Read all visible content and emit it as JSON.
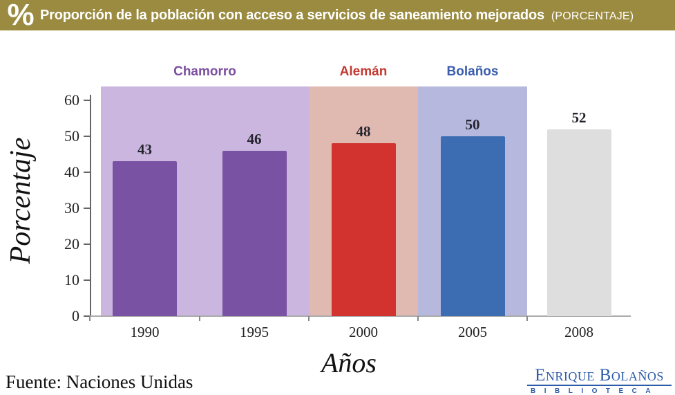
{
  "header": {
    "icon": "%",
    "title": "Proporción de la población con acceso a servicios de saneamiento mejorados",
    "subtitle": "(PORCENTAJE)"
  },
  "chart_data": {
    "type": "bar",
    "title": "Proporción de la población con acceso a servicios de saneamiento mejorados (porcentaje)",
    "xlabel": "Años",
    "ylabel": "Porcentaje",
    "categories": [
      "1990",
      "1995",
      "2000",
      "2005",
      "2008"
    ],
    "values": [
      43,
      46,
      48,
      50,
      52
    ],
    "bar_colors": [
      "#7a52a4",
      "#7a52a4",
      "#d2332e",
      "#3c6cb1",
      "#dedede"
    ],
    "ylim": [
      0,
      60
    ],
    "yticks": [
      0,
      10,
      20,
      30,
      40,
      50,
      60
    ],
    "grid": false,
    "legend_position": "none",
    "period_bands": [
      {
        "label": "Chamorro",
        "start_category": "1990",
        "end_category": "1995",
        "band_color": "#cab6de",
        "label_color": "#7b4fa0"
      },
      {
        "label": "Alemán",
        "start_category": "2000",
        "end_category": "2000",
        "band_color": "#e0b9b1",
        "label_color": "#c23a31"
      },
      {
        "label": "Bolaños",
        "start_category": "2005",
        "end_category": "2005",
        "band_color": "#b6b8de",
        "label_color": "#3a5dae"
      }
    ]
  },
  "footer": {
    "source": "Fuente: Naciones Unidas",
    "logo_title": "Enrique Bolaños",
    "logo_subtitle": "BIBLIOTECA"
  },
  "colors": {
    "header_bg": "#9a8b40",
    "header_text": "#ffffff",
    "logo_blue": "#2c5ba8",
    "axis_color": "#666666",
    "baseline_color": "#ababab",
    "value_label_color": "#24242e"
  }
}
